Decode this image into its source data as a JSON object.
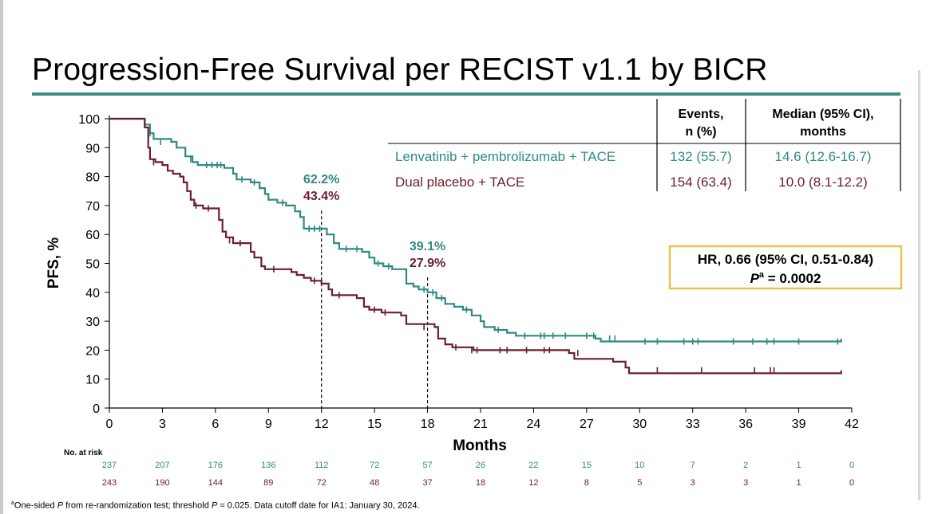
{
  "title": "Progression-Free Survival per RECIST v1.1 by BICR",
  "colors": {
    "lenva": "#2e8b80",
    "placebo": "#6b1f2e",
    "accent_rule": "#3d8f85",
    "hr_border": "#e8c24a"
  },
  "legend_table": {
    "headers": [
      "Events,",
      "n (%)",
      "Median (95% CI),",
      "months"
    ],
    "rows": [
      {
        "label": "Lenvatinib + pembrolizumab + TACE",
        "events": "132 (55.7)",
        "median": "14.6 (12.6-16.7)",
        "color": "#2e8b80"
      },
      {
        "label": "Dual placebo + TACE",
        "events": "154 (63.4)",
        "median": "10.0 (8.1-12.2)",
        "color": "#6b1f2e"
      }
    ]
  },
  "hr_box": {
    "line1": "HR, 0.66 (95% CI, 0.51-0.84)",
    "p_italic": "P",
    "p_sup": "a",
    "p_rest": " = 0.0002"
  },
  "annotations": [
    {
      "x": 12,
      "top": "62.2%",
      "bottom": "43.4%"
    },
    {
      "x": 18,
      "top": "39.1%",
      "bottom": "27.9%"
    }
  ],
  "risk_table": {
    "label": "No. at risk",
    "lenva": [
      "237",
      "207",
      "176",
      "136",
      "112",
      "72",
      "57",
      "26",
      "22",
      "15",
      "10",
      "7",
      "2",
      "1",
      "0"
    ],
    "placebo": [
      "243",
      "190",
      "144",
      "89",
      "72",
      "48",
      "37",
      "18",
      "12",
      "8",
      "5",
      "3",
      "3",
      "1",
      "0"
    ]
  },
  "footnote": {
    "sup": "a",
    "pre": "One-sided ",
    "p1": "P",
    "mid": " from re-randomization test; threshold ",
    "p2": "P",
    "post": " = 0.025. Data cutoff date for IA1: January 30, 2024."
  },
  "chart_data": {
    "type": "line",
    "xlabel": "Months",
    "ylabel": "PFS, %",
    "xlim": [
      0,
      42
    ],
    "ylim": [
      0,
      100
    ],
    "xticks": [
      0,
      3,
      6,
      9,
      12,
      15,
      18,
      21,
      24,
      27,
      30,
      33,
      36,
      39,
      42
    ],
    "yticks": [
      0,
      10,
      20,
      30,
      40,
      50,
      60,
      70,
      80,
      90,
      100
    ],
    "series": [
      {
        "name": "Lenvatinib + pembrolizumab + TACE",
        "color": "#2e8b80",
        "steps": [
          [
            0,
            100
          ],
          [
            1.8,
            100
          ],
          [
            2,
            98
          ],
          [
            2.3,
            95
          ],
          [
            2.5,
            93
          ],
          [
            3.5,
            92
          ],
          [
            3.8,
            90
          ],
          [
            4.3,
            87
          ],
          [
            4.7,
            85
          ],
          [
            5,
            84
          ],
          [
            6.5,
            83
          ],
          [
            7,
            81
          ],
          [
            7.2,
            79
          ],
          [
            8,
            78
          ],
          [
            8.5,
            76
          ],
          [
            8.8,
            74
          ],
          [
            9,
            72
          ],
          [
            9.5,
            71
          ],
          [
            10,
            70
          ],
          [
            10.5,
            68
          ],
          [
            10.8,
            66
          ],
          [
            11,
            62
          ],
          [
            12,
            62
          ],
          [
            12.3,
            60
          ],
          [
            12.7,
            57
          ],
          [
            13,
            55
          ],
          [
            14.3,
            54
          ],
          [
            14.7,
            52
          ],
          [
            15,
            50
          ],
          [
            15.5,
            49
          ],
          [
            16,
            48
          ],
          [
            16.8,
            43
          ],
          [
            17.2,
            42
          ],
          [
            17.5,
            41
          ],
          [
            18,
            40
          ],
          [
            18.5,
            38
          ],
          [
            19,
            36
          ],
          [
            19.5,
            35
          ],
          [
            20,
            34
          ],
          [
            20.5,
            32
          ],
          [
            21,
            30
          ],
          [
            21.2,
            28
          ],
          [
            21.8,
            27
          ],
          [
            22.5,
            26
          ],
          [
            23,
            25
          ],
          [
            27.5,
            24
          ],
          [
            27.8,
            23
          ],
          [
            41.3,
            23
          ]
        ],
        "end": [
          41.4,
          24
        ],
        "censor": [
          [
            2.3,
            95
          ],
          [
            2.9,
            92
          ],
          [
            4.6,
            86
          ],
          [
            5.5,
            84
          ],
          [
            5.8,
            84
          ],
          [
            6.1,
            84
          ],
          [
            6.3,
            84
          ],
          [
            7.5,
            79
          ],
          [
            8.2,
            78
          ],
          [
            9.8,
            71
          ],
          [
            11.3,
            62
          ],
          [
            11.6,
            62
          ],
          [
            11.9,
            62
          ],
          [
            13.4,
            55
          ],
          [
            14,
            55
          ],
          [
            15.2,
            50
          ],
          [
            15.8,
            49
          ],
          [
            17.8,
            41
          ],
          [
            18.3,
            40
          ],
          [
            18.8,
            38
          ],
          [
            20.2,
            34
          ],
          [
            22,
            27
          ],
          [
            23.5,
            25
          ],
          [
            24.4,
            25
          ],
          [
            24.6,
            25
          ],
          [
            25.1,
            25
          ],
          [
            25.8,
            25
          ],
          [
            27,
            25
          ],
          [
            27.4,
            25
          ],
          [
            28.3,
            24
          ],
          [
            28.6,
            24
          ],
          [
            30.3,
            23
          ],
          [
            31,
            23
          ],
          [
            32.5,
            23
          ],
          [
            33,
            23
          ],
          [
            33.3,
            23
          ],
          [
            35.3,
            23
          ],
          [
            36.4,
            23
          ],
          [
            37.2,
            23
          ],
          [
            37.6,
            23
          ],
          [
            39,
            23
          ],
          [
            41.2,
            23
          ]
        ]
      },
      {
        "name": "Dual placebo + TACE",
        "color": "#6b1f2e",
        "steps": [
          [
            0,
            100
          ],
          [
            1.8,
            100
          ],
          [
            2,
            97
          ],
          [
            2.2,
            90
          ],
          [
            2.3,
            86
          ],
          [
            2.6,
            85
          ],
          [
            3,
            84
          ],
          [
            3.3,
            82
          ],
          [
            3.6,
            81
          ],
          [
            4,
            80
          ],
          [
            4.2,
            78
          ],
          [
            4.4,
            75
          ],
          [
            4.6,
            72
          ],
          [
            4.8,
            70
          ],
          [
            5.3,
            69
          ],
          [
            6,
            69
          ],
          [
            6.2,
            65
          ],
          [
            6.4,
            61
          ],
          [
            6.6,
            59
          ],
          [
            7,
            57
          ],
          [
            7.8,
            57
          ],
          [
            8,
            54
          ],
          [
            8.2,
            52
          ],
          [
            8.6,
            49
          ],
          [
            8.8,
            48
          ],
          [
            10,
            48
          ],
          [
            10.3,
            47
          ],
          [
            10.6,
            46
          ],
          [
            11,
            45
          ],
          [
            11.4,
            44
          ],
          [
            12,
            43
          ],
          [
            12.4,
            41
          ],
          [
            12.6,
            39
          ],
          [
            14,
            38
          ],
          [
            14.4,
            35
          ],
          [
            14.7,
            34
          ],
          [
            15.4,
            33
          ],
          [
            16,
            33
          ],
          [
            16.5,
            32
          ],
          [
            16.8,
            29
          ],
          [
            18.4,
            28
          ],
          [
            18.6,
            24
          ],
          [
            19,
            22
          ],
          [
            19.4,
            21
          ],
          [
            20.6,
            20
          ],
          [
            22.8,
            20
          ],
          [
            26,
            19
          ],
          [
            26.3,
            17
          ],
          [
            28.5,
            16
          ],
          [
            29.2,
            14
          ],
          [
            29.4,
            12
          ],
          [
            41.3,
            12
          ]
        ],
        "end": [
          41.4,
          13
        ],
        "censor": [
          [
            2.5,
            85
          ],
          [
            4.9,
            70
          ],
          [
            5.6,
            69
          ],
          [
            6.8,
            58
          ],
          [
            7.4,
            57
          ],
          [
            9.3,
            48
          ],
          [
            11.6,
            44
          ],
          [
            13,
            39
          ],
          [
            15,
            34
          ],
          [
            15.6,
            33
          ],
          [
            17.8,
            28
          ],
          [
            19.6,
            21
          ],
          [
            20.5,
            20
          ],
          [
            20.8,
            20
          ],
          [
            22.1,
            20
          ],
          [
            22.5,
            20
          ],
          [
            23.6,
            20
          ],
          [
            24.6,
            20
          ],
          [
            24.9,
            20
          ],
          [
            26.5,
            19
          ],
          [
            31,
            13
          ],
          [
            33.5,
            13
          ],
          [
            36.5,
            13
          ],
          [
            37.4,
            13
          ],
          [
            37.6,
            13
          ]
        ]
      }
    ]
  }
}
